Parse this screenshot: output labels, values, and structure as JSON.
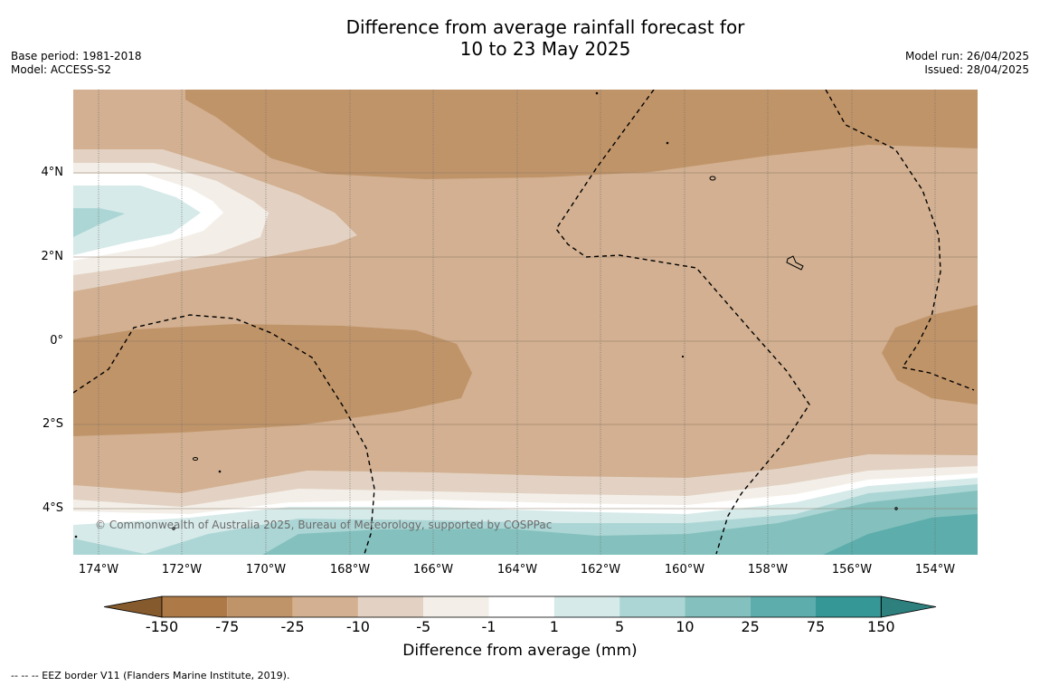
{
  "title": {
    "line1": "Difference from average rainfall forecast for",
    "line2": "10 to 23 May 2025"
  },
  "meta_left": {
    "base_period": "Base period: 1981-2018",
    "model": "Model: ACCESS-S2"
  },
  "meta_right": {
    "model_run": "Model run: 26/04/2025",
    "issued": "Issued: 28/04/2025"
  },
  "map": {
    "lat_labels": [
      "4°N",
      "2°N",
      "0°",
      "2°S",
      "4°S"
    ],
    "lon_labels": [
      "174°W",
      "172°W",
      "170°W",
      "168°W",
      "166°W",
      "164°W",
      "162°W",
      "160°W",
      "158°W",
      "156°W",
      "154°W"
    ],
    "copyright": "© Commonwealth of Australia 2025, Bureau of Meteorology, supported by COSPPac"
  },
  "colorbar": {
    "labels": [
      "-150",
      "-75",
      "-25",
      "-10",
      "-5",
      "-1",
      "1",
      "5",
      "10",
      "25",
      "75",
      "150"
    ],
    "colors": [
      "#855a2c",
      "#ad7a47",
      "#c09469",
      "#d2b091",
      "#e3d2c3",
      "#f3efe8",
      "#ffffff",
      "#d6eae9",
      "#acd6d5",
      "#84c1be",
      "#5cadab",
      "#369896",
      "#2d807d"
    ],
    "title": "Difference from average (mm)"
  },
  "footer": "--  --  -- EEZ border V11 (Flanders Marine Institute, 2019)."
}
